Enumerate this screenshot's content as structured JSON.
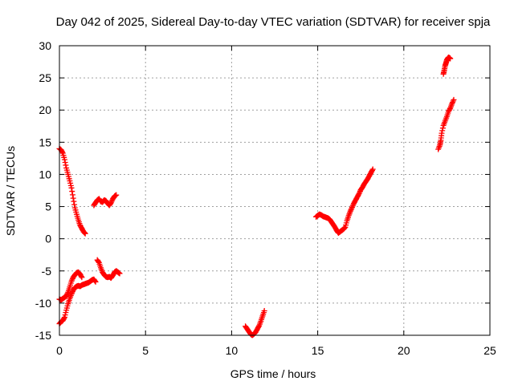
{
  "chart_data": {
    "type": "scatter",
    "title": "Day 042 of 2025, Sidereal Day-to-day VTEC variation (SDTVAR) for receiver spja",
    "xlabel": "GPS time / hours",
    "ylabel": "SDTVAR / TECUs",
    "xlim": [
      0,
      25
    ],
    "ylim": [
      -15,
      30
    ],
    "xticks": [
      "0",
      "5",
      "10",
      "15",
      "20",
      "25"
    ],
    "yticks": [
      "-15",
      "-10",
      "-5",
      "0",
      "5",
      "10",
      "15",
      "20",
      "25",
      "30"
    ],
    "grid": true,
    "marker": "plus",
    "color": "#ff0000",
    "series": [
      {
        "x": [
          0.0,
          0.1,
          0.2,
          0.3,
          0.4,
          0.5,
          0.6,
          0.7,
          0.8,
          0.9,
          1.0,
          1.1,
          1.2,
          1.3,
          1.4,
          1.5
        ],
        "y": [
          14.0,
          13.8,
          13.3,
          12.3,
          11.0,
          10.0,
          9.0,
          7.9,
          6.3,
          4.8,
          3.8,
          2.9,
          2.1,
          1.6,
          1.1,
          0.8
        ]
      },
      {
        "x": [
          2.0,
          2.1,
          2.2,
          2.3,
          2.4,
          2.5,
          2.6,
          2.7,
          2.8,
          2.9,
          3.0,
          3.1,
          3.2,
          3.3
        ],
        "y": [
          5.2,
          5.6,
          6.0,
          6.2,
          5.8,
          5.7,
          6.0,
          5.9,
          5.5,
          5.2,
          5.6,
          6.2,
          6.6,
          6.8
        ]
      },
      {
        "x": [
          0.0,
          0.1,
          0.2,
          0.3,
          0.4,
          0.5,
          0.6,
          0.7,
          0.8,
          0.9,
          1.0,
          1.1,
          1.2,
          1.3
        ],
        "y": [
          -9.4,
          -9.5,
          -9.3,
          -9.1,
          -8.9,
          -8.3,
          -7.5,
          -6.6,
          -6.0,
          -5.6,
          -5.3,
          -5.2,
          -5.5,
          -6.0
        ]
      },
      {
        "x": [
          0.0,
          0.1,
          0.2,
          0.3,
          0.4,
          0.5,
          0.6,
          0.7,
          0.8,
          0.9
        ],
        "y": [
          -13.2,
          -12.9,
          -12.7,
          -12.2,
          -11.1,
          -10.1,
          -9.3,
          -8.6,
          -8.0,
          -7.6
        ]
      },
      {
        "x": [
          0.9,
          1.0,
          1.1,
          1.2,
          1.3,
          1.4,
          1.5,
          1.6,
          1.7,
          1.8,
          1.9,
          2.0,
          2.1
        ],
        "y": [
          -7.6,
          -7.4,
          -7.3,
          -7.4,
          -7.2,
          -7.1,
          -7.0,
          -6.9,
          -6.8,
          -6.6,
          -6.4,
          -6.3,
          -6.7
        ]
      },
      {
        "x": [
          2.2,
          2.3,
          2.4,
          2.5,
          2.6,
          2.7,
          2.8,
          2.9,
          3.0,
          3.1,
          3.2,
          3.3,
          3.4,
          3.5
        ],
        "y": [
          -3.3,
          -3.7,
          -4.5,
          -5.2,
          -5.6,
          -5.9,
          -6.0,
          -5.9,
          -6.1,
          -5.7,
          -5.2,
          -5.0,
          -5.2,
          -5.4
        ]
      },
      {
        "x": [
          10.8,
          10.9,
          11.0,
          11.1,
          11.2,
          11.3,
          11.4,
          11.5,
          11.6,
          11.7,
          11.8,
          11.9
        ],
        "y": [
          -13.6,
          -14.0,
          -14.4,
          -14.8,
          -15.0,
          -14.8,
          -14.5,
          -14.0,
          -13.5,
          -12.8,
          -12.0,
          -11.2
        ]
      },
      {
        "x": [
          14.9,
          15.0,
          15.1,
          15.2,
          15.3,
          15.4,
          15.5,
          15.6,
          15.7,
          15.8,
          15.9,
          16.0,
          16.1,
          16.2,
          16.3,
          16.4,
          16.5,
          16.6,
          16.7,
          16.8,
          16.9,
          17.0,
          17.1,
          17.2,
          17.3,
          17.4,
          17.5,
          17.6,
          17.7,
          17.8,
          17.9,
          18.0,
          18.1,
          18.2
        ],
        "y": [
          3.4,
          3.6,
          3.8,
          3.7,
          3.5,
          3.4,
          3.3,
          3.2,
          3.0,
          2.6,
          2.2,
          1.8,
          1.3,
          0.9,
          1.1,
          1.3,
          1.5,
          1.8,
          2.8,
          3.6,
          4.3,
          4.9,
          5.5,
          6.0,
          6.5,
          7.0,
          7.6,
          8.0,
          8.5,
          8.9,
          9.3,
          9.8,
          10.3,
          10.8
        ]
      },
      {
        "x": [
          22.3,
          22.35,
          22.4,
          22.45,
          22.5,
          22.55,
          22.6,
          22.65,
          22.7
        ],
        "y": [
          25.6,
          26.2,
          26.9,
          27.3,
          27.8,
          28.0,
          28.2,
          28.1,
          28.0
        ]
      },
      {
        "x": [
          22.0,
          22.1,
          22.15,
          22.2,
          22.3,
          22.4,
          22.5,
          22.6,
          22.7,
          22.8,
          22.9
        ],
        "y": [
          13.9,
          14.6,
          15.3,
          16.4,
          17.6,
          18.3,
          19.0,
          19.8,
          20.3,
          21.0,
          21.6
        ]
      }
    ]
  }
}
